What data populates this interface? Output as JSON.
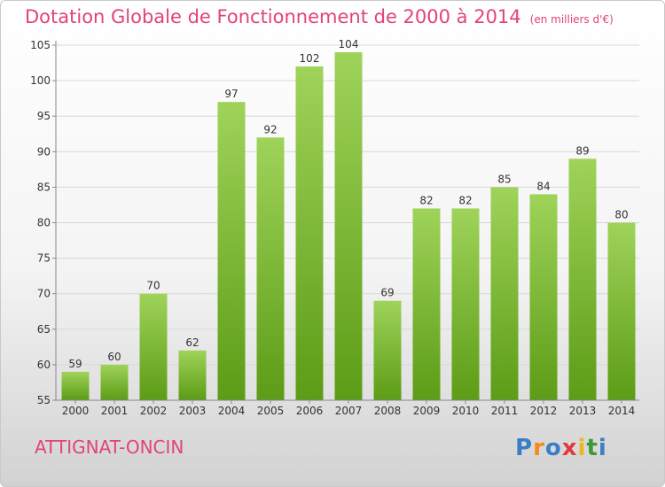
{
  "title": "Dotation Globale de Fonctionnement de 2000 à 2014",
  "unit_note": "(en milliers d'€)",
  "place": "ATTIGNAT-ONCIN",
  "brand": {
    "letters": [
      "P",
      "r",
      "o",
      "x",
      "i",
      "t",
      "i"
    ],
    "colors": [
      "#3a7fc6",
      "#f28a1c",
      "#3a7fc6",
      "#e23a3a",
      "#f2b31c",
      "#3a9a3a",
      "#3a7fc6"
    ]
  },
  "colors": {
    "bar_light": "#9fd35a",
    "bar_dark": "#5c9c16",
    "grid": "#d8d8d8",
    "axis": "#888888",
    "accent": "#e2427b"
  },
  "chart_data": {
    "type": "bar",
    "title": "Dotation Globale de Fonctionnement de 2000 à 2014",
    "xlabel": "",
    "ylabel": "",
    "ylim": [
      55,
      105
    ],
    "yticks": [
      55,
      60,
      65,
      70,
      75,
      80,
      85,
      90,
      95,
      100,
      105
    ],
    "grid": true,
    "categories": [
      "2000",
      "2001",
      "2002",
      "2003",
      "2004",
      "2005",
      "2006",
      "2007",
      "2008",
      "2009",
      "2010",
      "2011",
      "2012",
      "2013",
      "2014"
    ],
    "values": [
      59,
      60,
      70,
      62,
      97,
      92,
      102,
      104,
      69,
      82,
      82,
      85,
      84,
      89,
      80
    ]
  }
}
